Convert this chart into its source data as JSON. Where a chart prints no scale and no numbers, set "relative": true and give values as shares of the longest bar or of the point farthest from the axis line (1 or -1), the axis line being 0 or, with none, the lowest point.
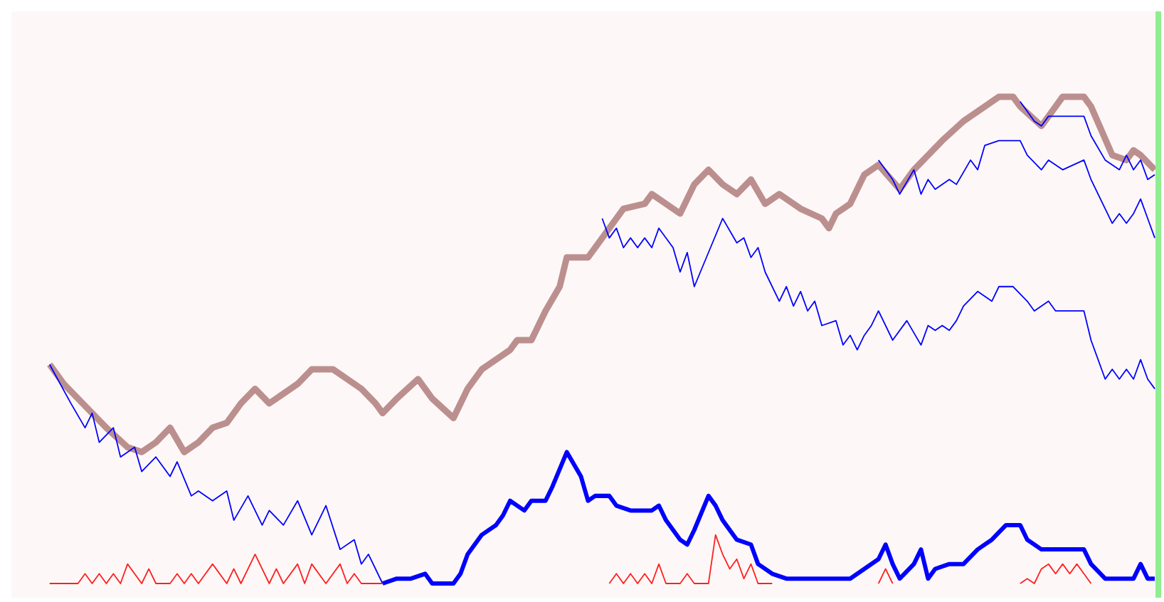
{
  "chart_data": {
    "type": "line",
    "relative": true,
    "categories": [
      null,
      null,
      null,
      null,
      null,
      null,
      null,
      null,
      null,
      null,
      null,
      null,
      null,
      null,
      null,
      null,
      null,
      null,
      null,
      null,
      null,
      null,
      null,
      null,
      null,
      null,
      null,
      null,
      null,
      null,
      null,
      null,
      null,
      null,
      null,
      null,
      null,
      null,
      null,
      null,
      null,
      null,
      null,
      null,
      null,
      null,
      null,
      null,
      null,
      null,
      null,
      null,
      null,
      null,
      null,
      null,
      null,
      null,
      null,
      null,
      null,
      null,
      null,
      null,
      null,
      null,
      null,
      null,
      null,
      null,
      null,
      null,
      null,
      null,
      null,
      null,
      null,
      null,
      null,
      null,
      null,
      null,
      null,
      null,
      null,
      null,
      null,
      null,
      null,
      null,
      null,
      null,
      null,
      null,
      null,
      null,
      null,
      null,
      null,
      null,
      null,
      null,
      null,
      null,
      null,
      null,
      null,
      null,
      null,
      null,
      null,
      null,
      null,
      null,
      null,
      null,
      null,
      null,
      null,
      null,
      null,
      null,
      null,
      null,
      null,
      null,
      null,
      null,
      null,
      null,
      null,
      null,
      null,
      null,
      null,
      null,
      null,
      null,
      null,
      null,
      null,
      null,
      null,
      null,
      null,
      null,
      null,
      null,
      null,
      null,
      null,
      null,
      null,
      null,
      null,
      null,
      null
    ],
    "series": [
      {
        "color": "#bc8f8f",
        "values": [
          0.45,
          null,
          0.41,
          null,
          0.38,
          null,
          0.35,
          null,
          0.32,
          null,
          null,
          0.28,
          null,
          0.27,
          null,
          0.29,
          null,
          0.32,
          null,
          0.27,
          null,
          0.29,
          null,
          0.32,
          null,
          0.33,
          null,
          0.37,
          null,
          0.4,
          null,
          0.37,
          null,
          0.39,
          null,
          0.41,
          null,
          0.44,
          null,
          null,
          0.44,
          null,
          0.42,
          null,
          0.4,
          null,
          0.37,
          0.35,
          null,
          0.38,
          null,
          null,
          0.42,
          null,
          0.38,
          null,
          null,
          0.34,
          null,
          0.4,
          null,
          0.44,
          null,
          0.46,
          null,
          0.48,
          0.5,
          null,
          0.5,
          null,
          0.56,
          null,
          0.61,
          0.67,
          null,
          null,
          0.67,
          0.69,
          null,
          0.73,
          null,
          0.77,
          null,
          null,
          0.78,
          0.8,
          null,
          0.78,
          null,
          0.76,
          null,
          0.82,
          null,
          0.85,
          null,
          0.82,
          null,
          0.8,
          null,
          0.83,
          null,
          0.78,
          null,
          0.8,
          null,
          null,
          0.77,
          null,
          null,
          0.75,
          0.73,
          0.76,
          null,
          0.78,
          null,
          0.84,
          null,
          0.86,
          null,
          null,
          0.81,
          null,
          0.85,
          null,
          null,
          null,
          0.91,
          null,
          null,
          0.95,
          null,
          null,
          0.98,
          null,
          1.0,
          null,
          1.0,
          0.98,
          null,
          null,
          0.94,
          null,
          null,
          1.0,
          null,
          null,
          1.0,
          0.98,
          null,
          null,
          0.88,
          null,
          0.87,
          0.89,
          0.88,
          null,
          0.85
        ]
      },
      {
        "color": "#0000ff",
        "values": [
          0.45,
          null,
          null,
          0.37,
          null,
          0.32,
          0.35,
          0.29,
          null,
          0.32,
          0.26,
          null,
          0.28,
          0.23,
          null,
          0.26,
          null,
          0.22,
          0.25,
          null,
          0.18,
          0.19,
          null,
          0.17,
          null,
          0.19,
          0.13,
          null,
          0.18,
          null,
          0.12,
          0.15,
          null,
          0.12,
          null,
          0.17,
          null,
          0.1,
          null,
          0.16,
          null,
          0.07,
          null,
          0.09,
          0.04,
          0.06,
          null,
          0,
          null,
          null,
          null,
          null,
          null,
          null,
          null,
          null,
          null,
          null,
          null,
          null,
          null,
          null,
          null,
          null,
          null,
          null,
          null,
          null,
          null,
          null,
          null,
          null,
          null,
          null,
          null,
          null,
          null,
          null,
          null,
          null,
          null,
          null,
          null,
          null,
          null,
          null,
          null,
          null,
          null,
          null,
          null,
          null,
          null,
          null,
          null,
          null,
          null,
          null,
          null,
          null,
          null,
          null,
          null,
          null,
          null,
          null,
          null,
          null,
          null,
          null,
          null,
          null,
          null,
          null,
          null,
          null,
          null,
          null,
          null,
          null,
          null,
          null,
          null,
          null,
          null,
          null,
          null,
          null,
          null,
          null,
          null,
          null,
          null,
          null,
          null,
          null,
          null,
          null,
          null,
          null,
          null,
          null,
          null,
          null,
          null,
          null,
          null,
          null,
          null,
          null,
          null,
          null,
          null,
          null,
          null,
          null,
          null
        ]
      },
      {
        "color": "#0000ff",
        "values": [
          null,
          null,
          null,
          null,
          null,
          null,
          null,
          null,
          null,
          null,
          null,
          null,
          null,
          null,
          null,
          null,
          null,
          null,
          null,
          null,
          null,
          null,
          null,
          null,
          null,
          null,
          null,
          null,
          null,
          null,
          null,
          null,
          null,
          null,
          null,
          null,
          null,
          null,
          null,
          null,
          null,
          null,
          null,
          null,
          null,
          null,
          null,
          0,
          null,
          0.01,
          0.01,
          0.01,
          null,
          0.02,
          0,
          null,
          null,
          0,
          0.02,
          0.06,
          null,
          0.1,
          null,
          0.12,
          0.14,
          0.17,
          null,
          0.15,
          0.17,
          null,
          0.17,
          0.2,
          null,
          0.27,
          null,
          0.22,
          0.17,
          0.18,
          null,
          0.18,
          0.16,
          null,
          0.15,
          null,
          null,
          0.15,
          0.16,
          0.13,
          null,
          0.09,
          0.08,
          0.11,
          null,
          0.18,
          0.16,
          0.13,
          null,
          0.09,
          null,
          0.08,
          0.04,
          null,
          0.02,
          null,
          0.01,
          null,
          null,
          0.01,
          null,
          null,
          null,
          0.01,
          null,
          0.01,
          null,
          0.03,
          null,
          0.05,
          0.08,
          0.04,
          0.01,
          null,
          0.04,
          0.07,
          0.01,
          0.03,
          null,
          0.04,
          null,
          0.04,
          null,
          0.07,
          null,
          0.09,
          null,
          0.12,
          null,
          0.12,
          0.09,
          null,
          0.07,
          null,
          0.07,
          null,
          null,
          null,
          0.07,
          0.04,
          null,
          0.01,
          null,
          0.01,
          null,
          0.01,
          0.04,
          0.01,
          0.01
        ]
      },
      {
        "color": "#ff2020",
        "values": [
          0,
          null,
          null,
          null,
          0,
          0.02,
          0,
          0.02,
          0,
          0.02,
          0,
          0.04,
          null,
          0,
          0.03,
          0,
          null,
          0,
          0.02,
          0,
          0.02,
          0,
          null,
          0.04,
          null,
          0,
          0.03,
          0,
          null,
          0.06,
          null,
          0,
          0.03,
          0,
          null,
          0.04,
          0,
          0.04,
          null,
          0,
          null,
          0.04,
          0,
          0.02,
          0,
          null,
          null,
          0,
          null,
          null,
          null,
          null,
          null,
          null,
          null,
          null,
          null,
          null,
          null,
          null,
          null,
          null,
          null,
          null,
          null,
          null,
          null,
          null,
          null,
          null,
          null,
          null,
          null,
          null,
          null,
          null,
          null,
          null,
          null,
          null,
          null,
          null,
          null,
          null,
          null,
          null,
          null,
          null,
          null,
          null,
          null,
          null,
          null,
          null,
          null,
          null,
          null,
          null,
          null,
          null,
          null,
          null,
          null,
          null,
          null,
          null,
          null,
          null,
          null,
          null,
          null,
          null,
          null,
          null,
          null,
          null,
          null,
          null,
          null,
          null,
          null,
          null,
          null,
          null,
          null,
          null,
          null,
          null,
          null,
          null,
          null,
          null,
          null,
          null,
          null,
          null,
          null,
          null,
          null,
          null,
          null,
          null,
          null,
          null,
          null,
          null,
          null,
          null,
          null,
          null,
          null,
          null,
          null,
          null,
          null,
          null,
          null
        ]
      },
      {
        "color": "#ff2020",
        "values": [
          null,
          null,
          null,
          null,
          null,
          null,
          null,
          null,
          null,
          null,
          null,
          null,
          null,
          null,
          null,
          null,
          null,
          null,
          null,
          null,
          null,
          null,
          null,
          null,
          null,
          null,
          null,
          null,
          null,
          null,
          null,
          null,
          null,
          null,
          null,
          null,
          null,
          null,
          null,
          null,
          null,
          null,
          null,
          null,
          null,
          null,
          null,
          null,
          null,
          null,
          null,
          null,
          null,
          null,
          null,
          null,
          null,
          null,
          null,
          null,
          null,
          null,
          null,
          null,
          null,
          null,
          null,
          null,
          null,
          null,
          null,
          null,
          null,
          null,
          null,
          null,
          null,
          null,
          null,
          0,
          0.02,
          0,
          0.02,
          0,
          0.02,
          0,
          0.04,
          0,
          null,
          0,
          0.02,
          0,
          null,
          0,
          0.1,
          0.06,
          0.03,
          0.05,
          0.01,
          0.04,
          0,
          null,
          0,
          null,
          null,
          null,
          null,
          null,
          null,
          null,
          null,
          null,
          null,
          null,
          null,
          null,
          null,
          null,
          null,
          null,
          null,
          null,
          null,
          null,
          null,
          null,
          null,
          null,
          null,
          null,
          null,
          null,
          null,
          null,
          null,
          null,
          null,
          null,
          null,
          null,
          null,
          null,
          null,
          null,
          null,
          null,
          null,
          null,
          null,
          null,
          null,
          null,
          null,
          null,
          null,
          null,
          null
        ]
      },
      {
        "color": "#ff2020",
        "values": [
          null,
          null,
          null,
          null,
          null,
          null,
          null,
          null,
          null,
          null,
          null,
          null,
          null,
          null,
          null,
          null,
          null,
          null,
          null,
          null,
          null,
          null,
          null,
          null,
          null,
          null,
          null,
          null,
          null,
          null,
          null,
          null,
          null,
          null,
          null,
          null,
          null,
          null,
          null,
          null,
          null,
          null,
          null,
          null,
          null,
          null,
          null,
          null,
          null,
          null,
          null,
          null,
          null,
          null,
          null,
          null,
          null,
          null,
          null,
          null,
          null,
          null,
          null,
          null,
          null,
          null,
          null,
          null,
          null,
          null,
          null,
          null,
          null,
          null,
          null,
          null,
          null,
          null,
          null,
          null,
          null,
          null,
          null,
          null,
          null,
          null,
          null,
          null,
          null,
          null,
          null,
          null,
          null,
          null,
          null,
          null,
          null,
          null,
          null,
          null,
          null,
          null,
          null,
          null,
          null,
          null,
          null,
          null,
          null,
          null,
          null,
          null,
          null,
          null,
          null,
          null,
          null,
          0,
          0.03,
          0,
          null,
          null,
          null,
          null,
          null,
          null,
          null,
          null,
          null,
          null,
          null,
          null,
          null,
          null,
          null,
          null,
          null,
          null,
          null,
          null,
          null,
          null,
          null,
          null,
          null,
          null,
          null,
          null,
          null,
          null,
          null,
          null,
          null,
          null,
          null,
          null,
          null
        ]
      },
      {
        "color": "#ff2020",
        "values": [
          null,
          null,
          null,
          null,
          null,
          null,
          null,
          null,
          null,
          null,
          null,
          null,
          null,
          null,
          null,
          null,
          null,
          null,
          null,
          null,
          null,
          null,
          null,
          null,
          null,
          null,
          null,
          null,
          null,
          null,
          null,
          null,
          null,
          null,
          null,
          null,
          null,
          null,
          null,
          null,
          null,
          null,
          null,
          null,
          null,
          null,
          null,
          null,
          null,
          null,
          null,
          null,
          null,
          null,
          null,
          null,
          null,
          null,
          null,
          null,
          null,
          null,
          null,
          null,
          null,
          null,
          null,
          null,
          null,
          null,
          null,
          null,
          null,
          null,
          null,
          null,
          null,
          null,
          null,
          null,
          null,
          null,
          null,
          null,
          null,
          null,
          null,
          null,
          null,
          null,
          null,
          null,
          null,
          null,
          null,
          null,
          null,
          null,
          null,
          null,
          null,
          null,
          null,
          null,
          null,
          null,
          null,
          null,
          null,
          null,
          null,
          null,
          null,
          null,
          null,
          null,
          null,
          null,
          null,
          null,
          null,
          null,
          null,
          null,
          null,
          null,
          null,
          null,
          null,
          null,
          null,
          null,
          null,
          null,
          null,
          null,
          null,
          0,
          0.01,
          0,
          0.03,
          0.04,
          0.02,
          0.04,
          0.02,
          0.04,
          0.02,
          0,
          null,
          null,
          null,
          null,
          null,
          null,
          null,
          null,
          null
        ]
      },
      {
        "color": "#0000ff",
        "values": [
          null,
          null,
          null,
          null,
          null,
          null,
          null,
          null,
          null,
          null,
          null,
          null,
          null,
          null,
          null,
          null,
          null,
          null,
          null,
          null,
          null,
          null,
          null,
          null,
          null,
          null,
          null,
          null,
          null,
          null,
          null,
          null,
          null,
          null,
          null,
          null,
          null,
          null,
          null,
          null,
          null,
          null,
          null,
          null,
          null,
          null,
          null,
          null,
          null,
          null,
          null,
          null,
          null,
          null,
          null,
          null,
          null,
          null,
          null,
          null,
          null,
          null,
          null,
          null,
          null,
          null,
          null,
          null,
          null,
          null,
          null,
          null,
          null,
          null,
          null,
          null,
          null,
          null,
          0.75,
          0.71,
          0.73,
          0.69,
          0.71,
          0.69,
          0.71,
          0.69,
          0.73,
          null,
          0.69,
          0.64,
          0.68,
          0.61,
          null,
          null,
          null,
          0.75,
          null,
          0.7,
          0.71,
          0.67,
          0.69,
          0.64,
          null,
          0.58,
          0.61,
          0.57,
          0.6,
          0.56,
          0.58,
          0.53,
          null,
          0.54,
          0.49,
          0.51,
          0.48,
          0.51,
          0.53,
          0.56,
          null,
          0.5,
          null,
          0.54,
          null,
          0.49,
          0.53,
          0.52,
          0.53,
          0.52,
          0.54,
          0.57,
          null,
          0.6,
          null,
          0.58,
          0.61,
          null,
          0.61,
          null,
          0.58,
          0.56,
          null,
          0.58,
          0.56,
          null,
          null,
          null,
          0.56,
          0.5,
          null,
          0.42,
          0.44,
          0.42,
          0.44,
          0.42,
          0.46,
          0.42,
          0.4
        ]
      },
      {
        "color": "#0000ff",
        "values": [
          null,
          null,
          null,
          null,
          null,
          null,
          null,
          null,
          null,
          null,
          null,
          null,
          null,
          null,
          null,
          null,
          null,
          null,
          null,
          null,
          null,
          null,
          null,
          null,
          null,
          null,
          null,
          null,
          null,
          null,
          null,
          null,
          null,
          null,
          null,
          null,
          null,
          null,
          null,
          null,
          null,
          null,
          null,
          null,
          null,
          null,
          null,
          null,
          null,
          null,
          null,
          null,
          null,
          null,
          null,
          null,
          null,
          null,
          null,
          null,
          null,
          null,
          null,
          null,
          null,
          null,
          null,
          null,
          null,
          null,
          null,
          null,
          null,
          null,
          null,
          null,
          null,
          null,
          null,
          null,
          null,
          null,
          null,
          null,
          null,
          null,
          null,
          null,
          null,
          null,
          null,
          null,
          null,
          null,
          null,
          null,
          null,
          null,
          null,
          null,
          null,
          null,
          null,
          null,
          null,
          null,
          null,
          null,
          null,
          null,
          null,
          null,
          null,
          null,
          null,
          null,
          null,
          0.87,
          null,
          0.83,
          0.8,
          null,
          0.85,
          0.8,
          0.83,
          0.81,
          null,
          0.83,
          0.82,
          null,
          0.87,
          0.85,
          0.9,
          null,
          0.91,
          0.91,
          null,
          0.91,
          0.88,
          null,
          0.85,
          0.87,
          null,
          0.85,
          null,
          null,
          0.87,
          0.83,
          null,
          0.77,
          0.74,
          0.76,
          0.74,
          0.76,
          0.79,
          0.75,
          0.71
        ]
      },
      {
        "color": "#0000ff",
        "values": [
          null,
          null,
          null,
          null,
          null,
          null,
          null,
          null,
          null,
          null,
          null,
          null,
          null,
          null,
          null,
          null,
          null,
          null,
          null,
          null,
          null,
          null,
          null,
          null,
          null,
          null,
          null,
          null,
          null,
          null,
          null,
          null,
          null,
          null,
          null,
          null,
          null,
          null,
          null,
          null,
          null,
          null,
          null,
          null,
          null,
          null,
          null,
          null,
          null,
          null,
          null,
          null,
          null,
          null,
          null,
          null,
          null,
          null,
          null,
          null,
          null,
          null,
          null,
          null,
          null,
          null,
          null,
          null,
          null,
          null,
          null,
          null,
          null,
          null,
          null,
          null,
          null,
          null,
          null,
          null,
          null,
          null,
          null,
          null,
          null,
          null,
          null,
          null,
          null,
          null,
          null,
          null,
          null,
          null,
          null,
          null,
          null,
          null,
          null,
          null,
          null,
          null,
          null,
          null,
          null,
          null,
          null,
          null,
          null,
          null,
          null,
          null,
          null,
          null,
          null,
          null,
          null,
          null,
          null,
          null,
          null,
          null,
          null,
          null,
          null,
          null,
          null,
          null,
          null,
          null,
          null,
          null,
          null,
          null,
          null,
          null,
          null,
          0.99,
          null,
          0.95,
          0.94,
          0.96,
          null,
          null,
          null,
          null,
          0.96,
          0.92,
          null,
          0.87,
          null,
          0.85,
          0.88,
          0.85,
          0.87,
          0.83,
          0.84
        ]
      }
    ]
  }
}
